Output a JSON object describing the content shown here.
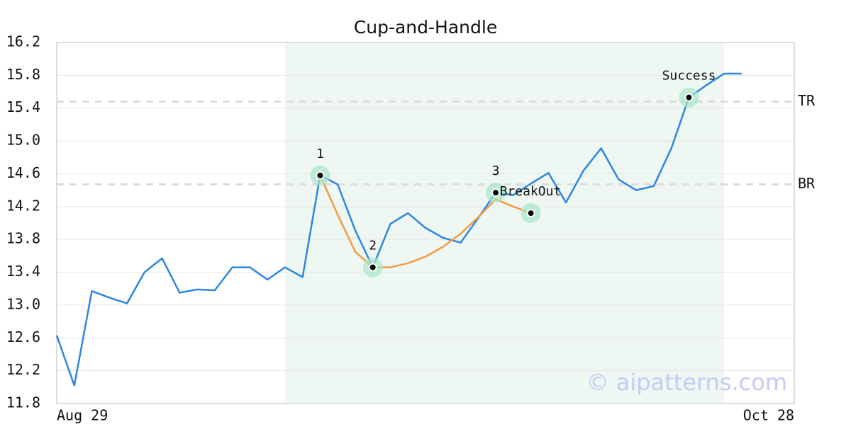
{
  "chart_data": {
    "type": "line",
    "title": "Cup-and-Handle",
    "x": [
      0,
      1,
      2,
      3,
      4,
      5,
      6,
      7,
      8,
      9,
      10,
      11,
      12,
      13,
      14,
      15,
      16,
      17,
      18,
      19,
      20,
      21,
      22,
      23,
      24,
      25,
      26,
      27,
      28,
      29,
      30,
      31,
      32,
      33,
      34,
      35,
      36,
      37,
      38,
      39
    ],
    "xlim": [
      0,
      42
    ],
    "xticks": [
      {
        "value": 0,
        "label": "Aug 29"
      },
      {
        "value": 42,
        "label": "Oct 28"
      }
    ],
    "ylim": [
      11.8,
      16.2
    ],
    "yticks": [
      {
        "value": 11.8,
        "label": "11.8"
      },
      12.2,
      12.6,
      {
        "value": 13,
        "label": "13.0"
      },
      13.4,
      13.8,
      14.2,
      14.6,
      {
        "value": 15,
        "label": "15.0"
      },
      15.4,
      15.8,
      16.2
    ],
    "grid": true,
    "series": [
      {
        "color": "#2e86e0",
        "values": [
          12.63,
          12.02,
          13.17,
          13.09,
          13.02,
          13.4,
          13.57,
          13.15,
          13.19,
          13.18,
          13.46,
          13.46,
          13.31,
          13.46,
          13.34,
          14.58,
          14.47,
          13.91,
          13.46,
          13.99,
          14.12,
          13.94,
          13.82,
          13.76,
          14.06,
          14.37,
          14.34,
          14.48,
          14.61,
          14.25,
          14.64,
          14.91,
          14.53,
          14.4,
          14.45,
          14.91,
          15.53,
          15.68,
          15.82,
          15.82
        ]
      },
      {
        "color": "#f59a45",
        "values": [
          null,
          null,
          null,
          null,
          null,
          null,
          null,
          null,
          null,
          null,
          null,
          null,
          null,
          null,
          null,
          14.58,
          14.1,
          13.65,
          13.46,
          13.46,
          13.51,
          13.59,
          13.71,
          13.87,
          14.07,
          14.29,
          14.2,
          14.12,
          null,
          null,
          null,
          null,
          null,
          null,
          null,
          null,
          null,
          null,
          null,
          null
        ]
      }
    ],
    "highlight": {
      "x": [
        13,
        38
      ],
      "color": "#eef7f2"
    },
    "levels": [
      {
        "label": "TR",
        "value": 15.48
      },
      {
        "label": "BR",
        "value": 14.47
      }
    ],
    "markers": [
      {
        "label": "1",
        "x": 15,
        "y": 14.58
      },
      {
        "label": "2",
        "x": 18,
        "y": 13.46
      },
      {
        "label": "3",
        "x": 25,
        "y": 14.37
      },
      {
        "label": "BreakOut",
        "x": 27,
        "y": 14.12
      },
      {
        "label": "Success",
        "x": 36,
        "y": 15.53
      }
    ],
    "watermark": "© aipatterns.com"
  }
}
